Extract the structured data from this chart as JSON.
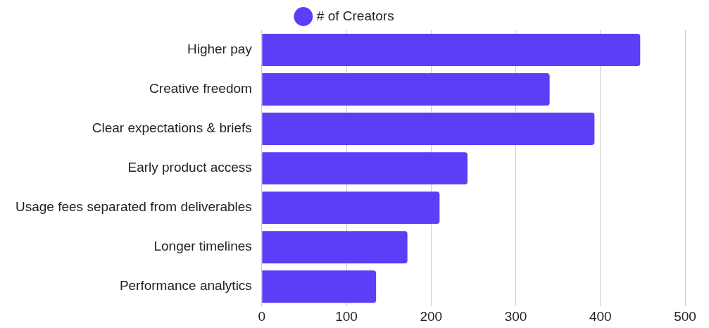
{
  "chart_data": {
    "type": "bar",
    "orientation": "horizontal",
    "categories": [
      "Higher pay",
      "Creative freedom",
      "Clear expectations & briefs",
      "Early product access",
      "Usage fees separated from deliverables",
      "Longer timelines",
      "Performance analytics"
    ],
    "series": [
      {
        "name": "# of Creators",
        "color": "#5b3ef5",
        "values": [
          447,
          340,
          393,
          243,
          210,
          172,
          135
        ]
      }
    ],
    "xlim": [
      0,
      500
    ],
    "xticks": [
      0,
      100,
      200,
      300,
      400,
      500
    ],
    "grid": "x",
    "legend": "top"
  }
}
